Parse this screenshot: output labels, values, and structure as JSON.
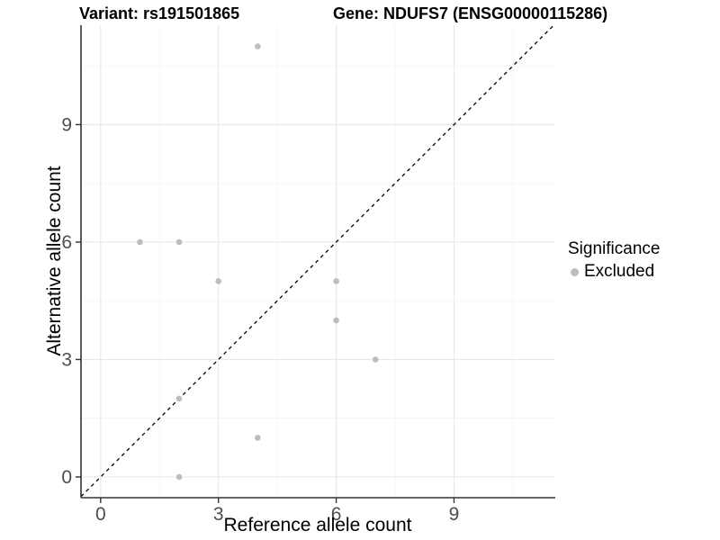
{
  "chart_data": {
    "type": "scatter",
    "titles": {
      "left": "Variant: rs191501865",
      "right": "Gene: NDUFS7 (ENSG00000115286)"
    },
    "xlabel": "Reference allele count",
    "ylabel": "Alternative allele count",
    "xlim": [
      -0.5,
      11.58
    ],
    "ylim": [
      -0.53,
      11.54
    ],
    "xticks": [
      0,
      3,
      6,
      9
    ],
    "yticks": [
      0,
      3,
      6,
      9
    ],
    "xminor": [
      1.5,
      4.5,
      7.5,
      10.5
    ],
    "yminor": [
      1.5,
      4.5,
      7.5,
      10.5
    ],
    "grid": true,
    "legend_position": "right",
    "series": [
      {
        "name": "Excluded",
        "color": "#bdbdbd",
        "points": [
          [
            1,
            6
          ],
          [
            2,
            0
          ],
          [
            2,
            2
          ],
          [
            2,
            6
          ],
          [
            3,
            5
          ],
          [
            4,
            1
          ],
          [
            4,
            11
          ],
          [
            6,
            4
          ],
          [
            6,
            5
          ],
          [
            7,
            3
          ]
        ]
      }
    ],
    "abline": {
      "slope": 1,
      "intercept": 0,
      "style": "dashed",
      "color": "#000000"
    },
    "legend": {
      "title": "Significance",
      "items": [
        {
          "label": "Excluded",
          "color": "#bdbdbd"
        }
      ]
    },
    "colors": {
      "point": "#bdbdbd",
      "grid_major": "#e9e9e9",
      "grid_minor": "#f3f3f3",
      "axis_line": "#333333",
      "tick_label": "#4d4d4d"
    }
  }
}
